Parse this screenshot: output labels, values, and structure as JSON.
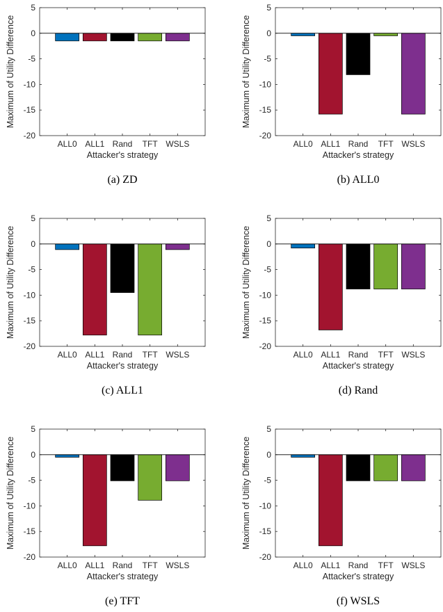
{
  "figure": {
    "colors": {
      "ALL0": "#0072bd",
      "ALL1": "#a2142f",
      "Rand": "#000000",
      "TFT": "#77ac30",
      "WSLS": "#7e2f8e"
    }
  },
  "chart_data": [
    {
      "type": "bar",
      "caption": "(a) ZD",
      "categories": [
        "ALL0",
        "ALL1",
        "Rand",
        "TFT",
        "WSLS"
      ],
      "values": [
        -1.5,
        -1.5,
        -1.5,
        -1.5,
        -1.5
      ],
      "xlabel": "Attacker's strategy",
      "ylabel": "Maximum of Utility Difference",
      "ylim": [
        -20,
        5
      ],
      "yticks": [
        5,
        0,
        -5,
        -10,
        -15,
        -20
      ],
      "grid": false
    },
    {
      "type": "bar",
      "caption": "(b) ALL0",
      "categories": [
        "ALL0",
        "ALL1",
        "Rand",
        "TFT",
        "WSLS"
      ],
      "values": [
        -0.5,
        -15.8,
        -8.1,
        -0.5,
        -15.8
      ],
      "xlabel": "Attacker's strategy",
      "ylabel": "Maximum of Utility Difference",
      "ylim": [
        -20,
        5
      ],
      "yticks": [
        5,
        0,
        -5,
        -10,
        -15,
        -20
      ],
      "grid": false
    },
    {
      "type": "bar",
      "caption": "(c) ALL1",
      "categories": [
        "ALL0",
        "ALL1",
        "Rand",
        "TFT",
        "WSLS"
      ],
      "values": [
        -1.1,
        -17.8,
        -9.5,
        -17.8,
        -1.1
      ],
      "xlabel": "Attacker's strategy",
      "ylabel": "Maximum of Utility Difference",
      "ylim": [
        -20,
        5
      ],
      "yticks": [
        5,
        0,
        -5,
        -10,
        -15,
        -20
      ],
      "grid": false
    },
    {
      "type": "bar",
      "caption": "(d) Rand",
      "categories": [
        "ALL0",
        "ALL1",
        "Rand",
        "TFT",
        "WSLS"
      ],
      "values": [
        -0.8,
        -16.8,
        -8.8,
        -8.8,
        -8.8
      ],
      "xlabel": "Attacker's strategy",
      "ylabel": "Maximum of Utility Difference",
      "ylim": [
        -20,
        5
      ],
      "yticks": [
        5,
        0,
        -5,
        -10,
        -15,
        -20
      ],
      "grid": false
    },
    {
      "type": "bar",
      "caption": "(e) TFT",
      "categories": [
        "ALL0",
        "ALL1",
        "Rand",
        "TFT",
        "WSLS"
      ],
      "values": [
        -0.5,
        -17.8,
        -5.1,
        -8.9,
        -5.1
      ],
      "xlabel": "Attacker's strategy",
      "ylabel": "Maximum of Utility Difference",
      "ylim": [
        -20,
        5
      ],
      "yticks": [
        5,
        0,
        -5,
        -10,
        -15,
        -20
      ],
      "grid": false
    },
    {
      "type": "bar",
      "caption": "(f) WSLS",
      "categories": [
        "ALL0",
        "ALL1",
        "Rand",
        "TFT",
        "WSLS"
      ],
      "values": [
        -0.5,
        -17.8,
        -5.1,
        -5.1,
        -5.1
      ],
      "xlabel": "Attacker's strategy",
      "ylabel": "Maximum of Utility Difference",
      "ylim": [
        -20,
        5
      ],
      "yticks": [
        5,
        0,
        -5,
        -10,
        -15,
        -20
      ],
      "grid": false
    }
  ]
}
